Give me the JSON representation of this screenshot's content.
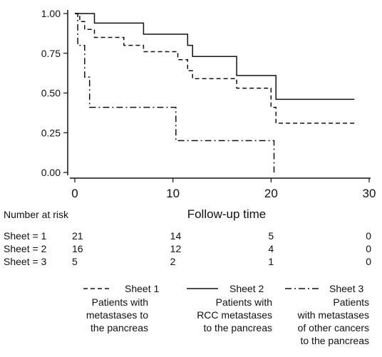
{
  "chart_data": {
    "type": "line",
    "subtype": "kaplan-meier survival curve",
    "xlabel": "Follow-up time",
    "ylabel": "",
    "xlim": [
      0,
      30
    ],
    "ylim": [
      0,
      1
    ],
    "x_ticks": [
      "0",
      "10",
      "20",
      "30"
    ],
    "y_ticks": [
      "0.00",
      "0.25",
      "0.50",
      "0.75",
      "1.00"
    ],
    "grid": false,
    "legend_position": "bottom",
    "series": [
      {
        "name": "Sheet 1",
        "legend_label": "Patients with metastases to the pancreas",
        "line_style": "dashed",
        "x": [
          0,
          0.5,
          1.0,
          2.0,
          5.0,
          7.0,
          10.5,
          11.5,
          12.0,
          16.5,
          20.0,
          20.5,
          28.5
        ],
        "y": [
          1.0,
          0.95,
          0.9,
          0.85,
          0.8,
          0.76,
          0.71,
          0.64,
          0.59,
          0.53,
          0.41,
          0.31,
          0.31
        ]
      },
      {
        "name": "Sheet 2",
        "legend_label": "Patients with RCC metastases to the pancreas",
        "line_style": "solid",
        "x": [
          0,
          2.0,
          7.0,
          11.5,
          12.0,
          16.5,
          20.5,
          28.5
        ],
        "y": [
          1.0,
          0.94,
          0.87,
          0.8,
          0.73,
          0.61,
          0.46,
          0.46
        ]
      },
      {
        "name": "Sheet 3",
        "legend_label": "Patients with metastases of other cancers to the pancreas",
        "line_style": "dashdot",
        "x": [
          0,
          0.3,
          1.0,
          1.5,
          10.3,
          20.3,
          20.3
        ],
        "y": [
          1.0,
          0.8,
          0.6,
          0.41,
          0.2,
          0.2,
          0.0
        ]
      }
    ],
    "risk_table": {
      "title": "Number at risk",
      "times": [
        0,
        10,
        20,
        30
      ],
      "rows": [
        {
          "label": "Sheet = 1",
          "counts": [
            "21",
            "14",
            "5",
            "0"
          ]
        },
        {
          "label": "Sheet = 2",
          "counts": [
            "16",
            "12",
            "4",
            "0"
          ]
        },
        {
          "label": "Sheet = 3",
          "counts": [
            "5",
            "2",
            "1",
            "0"
          ]
        }
      ]
    }
  }
}
